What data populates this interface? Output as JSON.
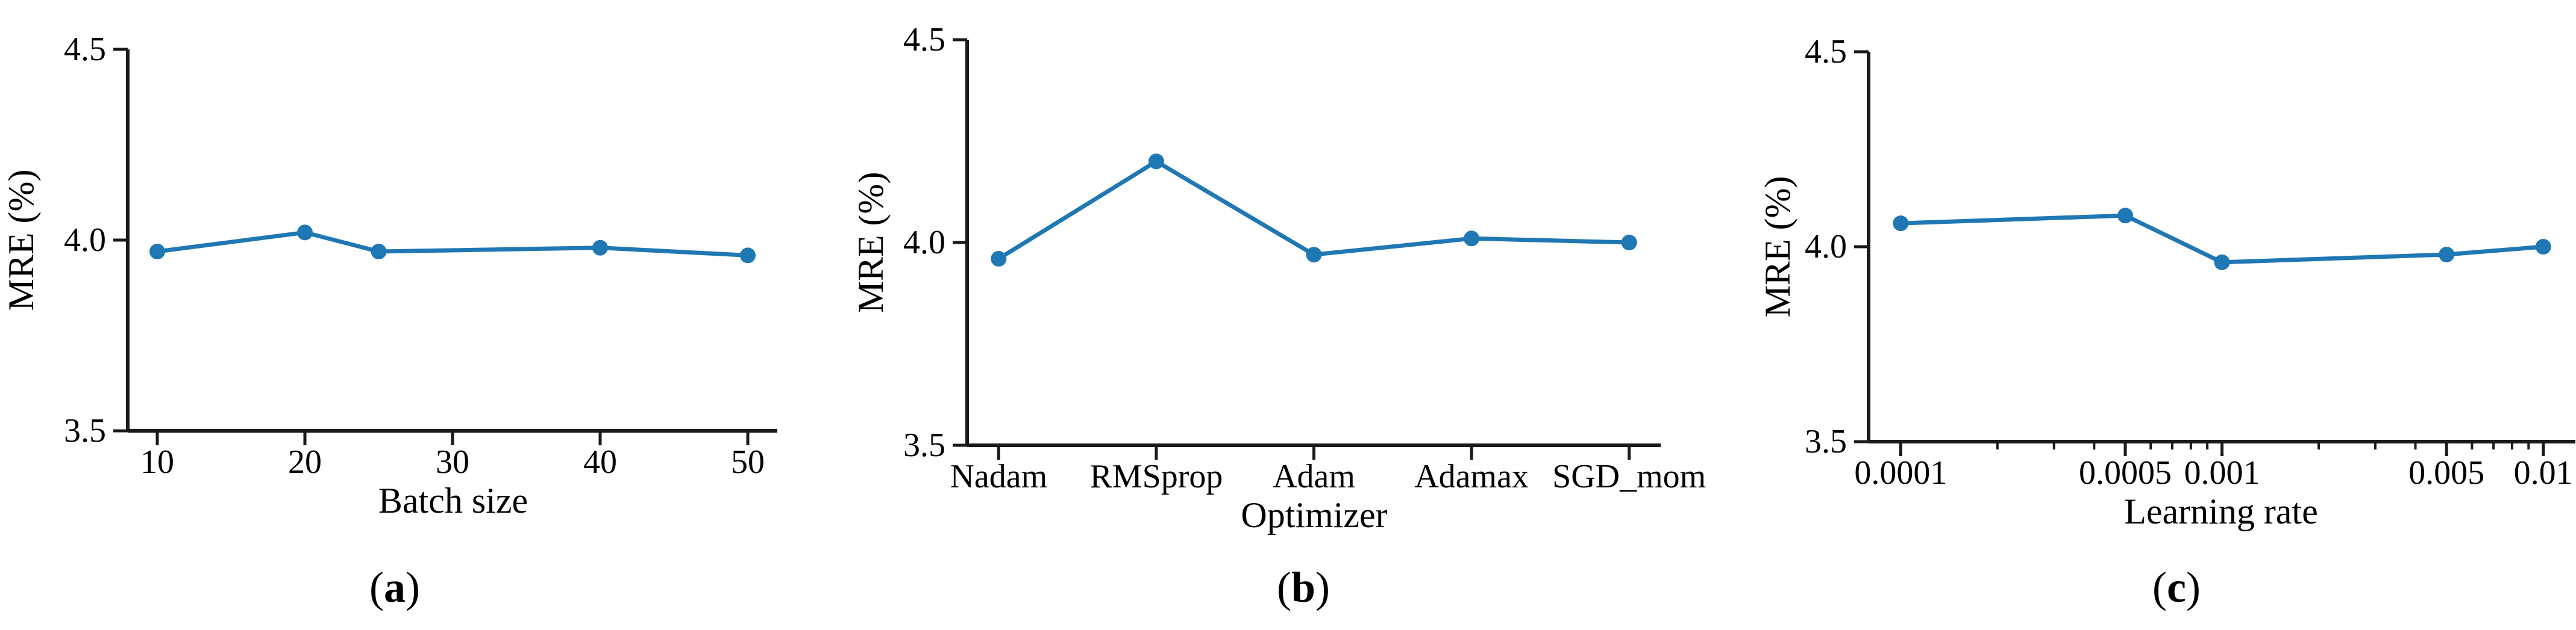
{
  "figure": {
    "background": "#ffffff",
    "text_color": "#000000",
    "accent_color": "#1f77b4"
  },
  "captions": {
    "open_paren": "(",
    "close_paren": ")"
  },
  "chart_data": [
    {
      "panel": "a",
      "type": "line",
      "caption_letter": "a",
      "xlabel": "Batch size",
      "ylabel": "MRE (%)",
      "x_scale": "linear",
      "xlim": [
        8,
        52
      ],
      "x": [
        10,
        20,
        25,
        40,
        50
      ],
      "values": [
        3.97,
        4.02,
        3.97,
        3.98,
        3.96
      ],
      "x_ticks": [
        {
          "value": 10,
          "label": "10"
        },
        {
          "value": 20,
          "label": "20"
        },
        {
          "value": 30,
          "label": "30"
        },
        {
          "value": 40,
          "label": "40"
        },
        {
          "value": 50,
          "label": "50"
        }
      ],
      "x_minor_ticks": [],
      "ylim": [
        3.5,
        4.5
      ],
      "y_ticks": [
        {
          "value": 3.5,
          "label": "3.5"
        },
        {
          "value": 4.0,
          "label": "4.0"
        },
        {
          "value": 4.5,
          "label": "4.5"
        }
      ],
      "grid": false,
      "legend": null,
      "marker": "circle",
      "line_color": "#1f77b4"
    },
    {
      "panel": "b",
      "type": "line",
      "caption_letter": "b",
      "xlabel": "Optimizer",
      "ylabel": "MRE (%)",
      "x_scale": "category",
      "xlim": [
        -0.2,
        4.2
      ],
      "categories": [
        "Nadam",
        "RMSprop",
        "Adam",
        "Adamax",
        "SGD_mom"
      ],
      "values": [
        3.96,
        4.2,
        3.97,
        4.01,
        4.0
      ],
      "x_minor_ticks": [],
      "ylim": [
        3.5,
        4.5
      ],
      "y_ticks": [
        {
          "value": 3.5,
          "label": "3.5"
        },
        {
          "value": 4.0,
          "label": "4.0"
        },
        {
          "value": 4.5,
          "label": "4.5"
        }
      ],
      "grid": false,
      "legend": null,
      "marker": "circle",
      "line_color": "#1f77b4"
    },
    {
      "panel": "c",
      "type": "line",
      "caption_letter": "c",
      "xlabel": "Learning rate",
      "ylabel": "MRE (%)",
      "x_scale": "log10",
      "xlim": [
        -4.1,
        -1.9
      ],
      "x": [
        0.0001,
        0.0005,
        0.001,
        0.005,
        0.01
      ],
      "values": [
        4.06,
        4.08,
        3.96,
        3.98,
        4.0
      ],
      "x_ticks": [
        {
          "value": 0.0001,
          "label": "0.0001"
        },
        {
          "value": 0.0005,
          "label": "0.0005"
        },
        {
          "value": 0.001,
          "label": "0.001"
        },
        {
          "value": 0.005,
          "label": "0.005"
        },
        {
          "value": 0.01,
          "label": "0.01"
        }
      ],
      "x_minor_ticks": [
        0.0002,
        0.0003,
        0.0004,
        0.0006,
        0.0007,
        0.0008,
        0.0009,
        0.002,
        0.003,
        0.004,
        0.006,
        0.007,
        0.008,
        0.009
      ],
      "ylim": [
        3.5,
        4.5
      ],
      "y_ticks": [
        {
          "value": 3.5,
          "label": "3.5"
        },
        {
          "value": 4.0,
          "label": "4.0"
        },
        {
          "value": 4.5,
          "label": "4.5"
        }
      ],
      "grid": false,
      "legend": null,
      "marker": "circle",
      "line_color": "#1f77b4"
    }
  ]
}
